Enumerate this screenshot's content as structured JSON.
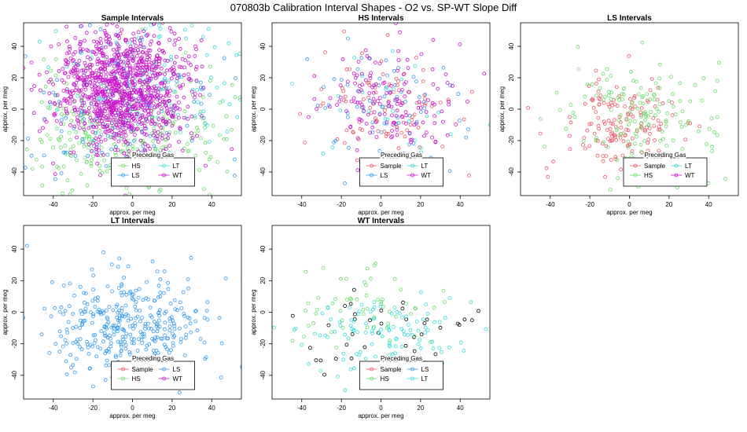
{
  "page_title": "070803b   Calibration Interval Shapes - O2 vs. SP-WT Slope Diff",
  "chart_data": [
    {
      "type": "scatter",
      "title": "Sample Intervals",
      "xlabel": "approx. per meg",
      "ylabel": "approx. per meg",
      "xlim": [
        -55,
        55
      ],
      "ylim": [
        -55,
        55
      ],
      "xticks": [
        "-40",
        "-20",
        "0",
        "20",
        "40"
      ],
      "yticks": [
        "-40",
        "-20",
        "0",
        "20",
        "40"
      ],
      "legend": {
        "title": "Preceding Gas",
        "placement": "bottom-center",
        "entries": [
          {
            "label": "HS",
            "color": "#66dd66"
          },
          {
            "label": "LT",
            "color": "#33dddd"
          },
          {
            "label": "LS",
            "color": "#3399ee"
          },
          {
            "label": "WT",
            "color": "#cc11cc"
          }
        ]
      },
      "series": [
        {
          "color": "#66dd66",
          "cx": -5,
          "cy": -18,
          "sx": 26,
          "sy": 22,
          "n": 320,
          "seed": 11
        },
        {
          "color": "#33dddd",
          "cx": 8,
          "cy": 18,
          "sx": 24,
          "sy": 22,
          "n": 140,
          "seed": 12
        },
        {
          "color": "#3399ee",
          "cx": -10,
          "cy": 0,
          "sx": 24,
          "sy": 24,
          "n": 160,
          "seed": 13
        },
        {
          "color": "#cc11cc",
          "cx": -5,
          "cy": 12,
          "sx": 17,
          "sy": 20,
          "n": 1100,
          "seed": 14
        }
      ]
    },
    {
      "type": "scatter",
      "title": "HS Intervals",
      "xlabel": "approx. per meg",
      "ylabel": "approx. per meg",
      "xlim": [
        -55,
        55
      ],
      "ylim": [
        -55,
        55
      ],
      "xticks": [
        "-40",
        "-20",
        "0",
        "20",
        "40"
      ],
      "yticks": [
        "-40",
        "-20",
        "0",
        "20",
        "40"
      ],
      "legend": {
        "title": "Preceding Gas",
        "placement": "bottom-center",
        "entries": [
          {
            "label": "Sample",
            "color": "#ee5566"
          },
          {
            "label": "LT",
            "color": "#33dddd"
          },
          {
            "label": "LS",
            "color": "#3399ee"
          },
          {
            "label": "WT",
            "color": "#cc11cc"
          }
        ]
      },
      "series": [
        {
          "color": "#ee5566",
          "cx": 0,
          "cy": 2,
          "sx": 18,
          "sy": 18,
          "n": 90,
          "seed": 21
        },
        {
          "color": "#33dddd",
          "cx": 5,
          "cy": 5,
          "sx": 16,
          "sy": 16,
          "n": 30,
          "seed": 22
        },
        {
          "color": "#3399ee",
          "cx": 0,
          "cy": 0,
          "sx": 20,
          "sy": 22,
          "n": 70,
          "seed": 23
        },
        {
          "color": "#cc11cc",
          "cx": 0,
          "cy": 4,
          "sx": 18,
          "sy": 16,
          "n": 150,
          "seed": 24
        }
      ]
    },
    {
      "type": "scatter",
      "title": "LS Intervals",
      "xlabel": "approx. per meg",
      "ylabel": "approx. per meg",
      "xlim": [
        -55,
        55
      ],
      "ylim": [
        -55,
        55
      ],
      "xticks": [
        "-40",
        "-20",
        "0",
        "20",
        "40"
      ],
      "yticks": [
        "-40",
        "-20",
        "0",
        "20",
        "40"
      ],
      "legend": {
        "title": "Preceding Gas",
        "placement": "bottom-right",
        "entries": [
          {
            "label": "Sample",
            "color": "#ee5566"
          },
          {
            "label": "LT",
            "color": "#33dddd"
          },
          {
            "label": "HS",
            "color": "#66dd66"
          },
          {
            "label": "WT",
            "color": "#cc11cc"
          }
        ]
      },
      "series": [
        {
          "color": "#ee5566",
          "cx": -5,
          "cy": -10,
          "sx": 14,
          "sy": 14,
          "n": 150,
          "seed": 31
        },
        {
          "color": "#66dd66",
          "cx": 5,
          "cy": -5,
          "sx": 22,
          "sy": 20,
          "n": 160,
          "seed": 32
        }
      ]
    },
    {
      "type": "scatter",
      "title": "LT Intervals",
      "xlabel": "approx. per meg",
      "ylabel": "approx. per meg",
      "xlim": [
        -55,
        55
      ],
      "ylim": [
        -55,
        55
      ],
      "xticks": [
        "-40",
        "-20",
        "0",
        "20",
        "40"
      ],
      "yticks": [
        "-40",
        "-20",
        "0",
        "20",
        "40"
      ],
      "legend": {
        "title": "Preceding Gas",
        "placement": "bottom-center",
        "entries": [
          {
            "label": "Sample",
            "color": "#ee5566"
          },
          {
            "label": "LS",
            "color": "#3399ee"
          },
          {
            "label": "HS",
            "color": "#66dd66"
          },
          {
            "label": "WT",
            "color": "#cc11cc"
          }
        ]
      },
      "series": [
        {
          "color": "#3399ee",
          "cx": -2,
          "cy": -8,
          "sx": 20,
          "sy": 18,
          "n": 380,
          "seed": 41
        }
      ]
    },
    {
      "type": "scatter",
      "title": "WT Intervals",
      "xlabel": "approx. per meg",
      "ylabel": "approx. per meg",
      "xlim": [
        -55,
        55
      ],
      "ylim": [
        -55,
        55
      ],
      "xticks": [
        "-40",
        "-20",
        "0",
        "20",
        "40"
      ],
      "yticks": [
        "-40",
        "-20",
        "0",
        "20",
        "40"
      ],
      "legend": {
        "title": "Preceding Gas",
        "placement": "bottom-center",
        "entries": [
          {
            "label": "Sample",
            "color": "#ee5566"
          },
          {
            "label": "LS",
            "color": "#3399ee"
          },
          {
            "label": "HS",
            "color": "#66dd66"
          },
          {
            "label": "LT",
            "color": "#33dddd"
          }
        ]
      },
      "series": [
        {
          "color": "#000000",
          "cx": 0,
          "cy": -15,
          "sx": 28,
          "sy": 14,
          "n": 40,
          "seed": 51
        },
        {
          "color": "#66dd66",
          "cx": 0,
          "cy": 5,
          "sx": 18,
          "sy": 14,
          "n": 60,
          "seed": 52
        },
        {
          "color": "#33dddd",
          "cx": 0,
          "cy": -15,
          "sx": 20,
          "sy": 12,
          "n": 120,
          "seed": 53
        }
      ]
    }
  ]
}
